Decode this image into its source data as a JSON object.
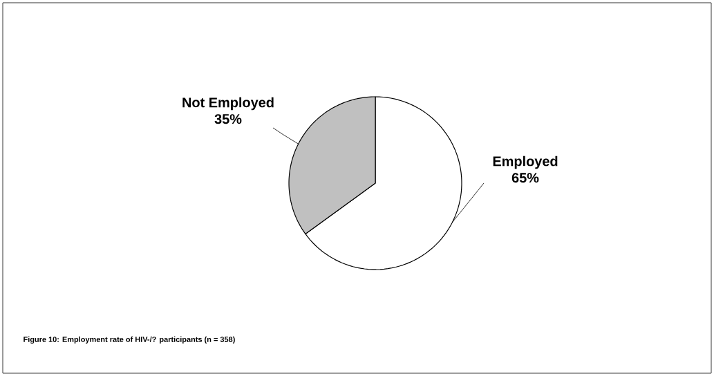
{
  "chart_data": {
    "type": "pie",
    "title": "Figure 10: Employment rate of HIV-/? participants (n = 358)",
    "categories": [
      "Employed",
      "Not Employed"
    ],
    "values": [
      65,
      35
    ],
    "value_labels": [
      "65%",
      "35%"
    ],
    "colors": [
      "#ffffff",
      "#c0c0c0"
    ]
  }
}
